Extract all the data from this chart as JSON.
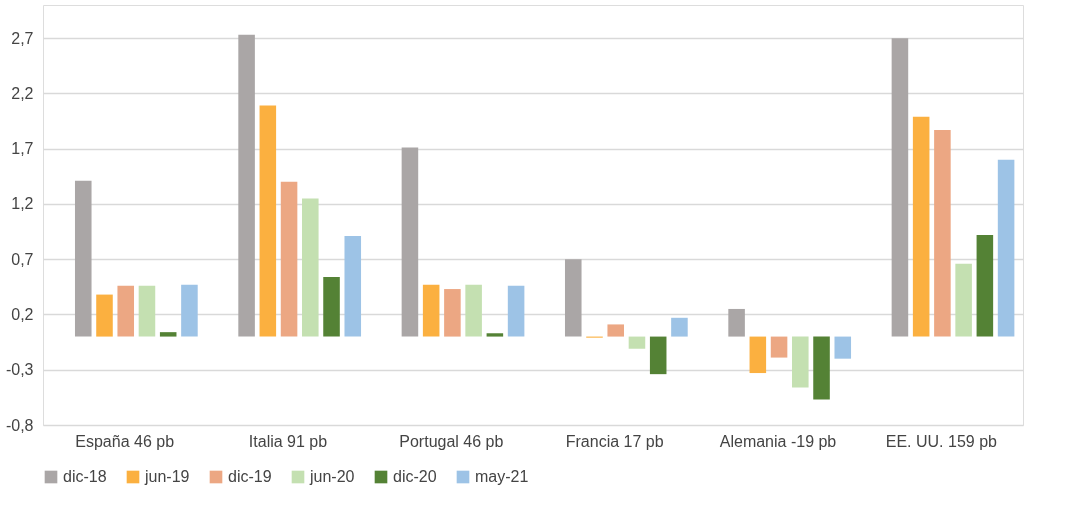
{
  "chart_data": {
    "type": "bar",
    "categories": [
      "España 46 pb",
      "Italia 91 pb",
      "Portugal 46 pb",
      "Francia 17 pb",
      "Alemania -19 pb",
      "EE. UU. 159 pb"
    ],
    "series": [
      {
        "name": "dic-18",
        "color": "#aaa6a6",
        "values": [
          1.41,
          2.73,
          1.71,
          0.7,
          0.25,
          2.7
        ]
      },
      {
        "name": "jun-19",
        "color": "#fbb040",
        "values": [
          0.38,
          2.09,
          0.47,
          -0.01,
          -0.33,
          1.99
        ]
      },
      {
        "name": "dic-19",
        "color": "#eca783",
        "values": [
          0.46,
          1.4,
          0.43,
          0.11,
          -0.19,
          1.87
        ]
      },
      {
        "name": "jun-20",
        "color": "#c4e0b1",
        "values": [
          0.46,
          1.25,
          0.47,
          -0.11,
          -0.46,
          0.66
        ]
      },
      {
        "name": "dic-20",
        "color": "#548235",
        "values": [
          0.04,
          0.54,
          0.03,
          -0.34,
          -0.57,
          0.92
        ]
      },
      {
        "name": "may-21",
        "color": "#9dc3e6",
        "values": [
          0.47,
          0.91,
          0.46,
          0.17,
          -0.2,
          1.6
        ]
      }
    ],
    "ylim": [
      -0.8,
      3.0
    ],
    "yticks": [
      {
        "value": -0.8,
        "label": "-0,8"
      },
      {
        "value": -0.3,
        "label": "-0,3"
      },
      {
        "value": 0.2,
        "label": "0,2"
      },
      {
        "value": 0.7,
        "label": "0,7"
      },
      {
        "value": 1.2,
        "label": "1,2"
      },
      {
        "value": 1.7,
        "label": "1,7"
      },
      {
        "value": 2.2,
        "label": "2,2"
      },
      {
        "value": 2.7,
        "label": "2,7"
      }
    ],
    "grid": "y",
    "legend": "bottom"
  }
}
